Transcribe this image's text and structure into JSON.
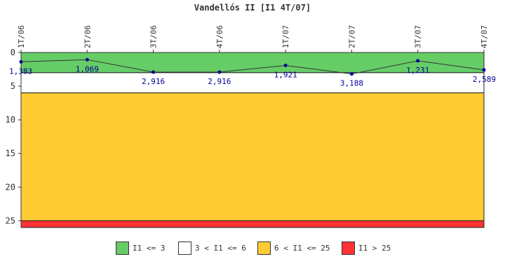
{
  "chart_data": {
    "type": "line",
    "title": "Vandellós II [I1 4T/07]",
    "categories": [
      "1T/06",
      "2T/06",
      "3T/06",
      "4T/06",
      "1T/07",
      "2T/07",
      "3T/07",
      "4T/07"
    ],
    "series": [
      {
        "values": [
          1.383,
          1.069,
          2.916,
          2.916,
          1.921,
          3.188,
          1.231,
          2.589
        ],
        "value_labels": [
          "1,383",
          "1,069",
          "2,916",
          "2,916",
          "1,921",
          "3,188",
          "1,231",
          "2,589"
        ],
        "color": "#000099"
      }
    ],
    "y_ticks": [
      "0",
      "5",
      "10",
      "15",
      "20",
      "25"
    ],
    "ylim": [
      0,
      26
    ],
    "y_inverted": true,
    "grid": false,
    "bands": [
      {
        "from": 0,
        "to": 3,
        "color": "#66cc66",
        "label": "I1 <= 3"
      },
      {
        "from": 3,
        "to": 6,
        "color": "#ffffff",
        "label": "3 < I1 <= 6"
      },
      {
        "from": 6,
        "to": 25,
        "color": "#ffcc33",
        "label": "6 < I1 <= 25"
      },
      {
        "from": 25,
        "to": 26,
        "color": "#ff3333",
        "label": "I1 > 25"
      }
    ],
    "legend_position": "bottom"
  }
}
